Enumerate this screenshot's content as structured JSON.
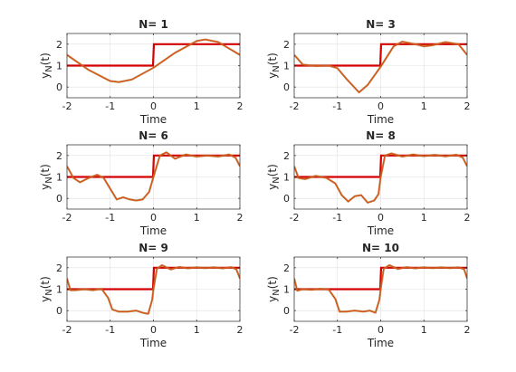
{
  "colors": {
    "square_wave": "#d40000",
    "partial_sum": "#d95319",
    "partial_sum_shade": "#8c8c3c",
    "axes": "#262626",
    "grid": "#dfdfdf"
  },
  "chart_data": [
    {
      "type": "line",
      "title": "N= 1",
      "xlabel": "Time",
      "ylabel": "y_N(t)",
      "xlim": [
        -2,
        2
      ],
      "ylim": [
        -0.5,
        2.5
      ],
      "xticks": [
        "-2",
        "-1",
        "0",
        "1",
        "2"
      ],
      "yticks": [
        "0",
        "1",
        "2"
      ],
      "grid": true,
      "series": [
        {
          "x": [
            -2,
            -1.5,
            -1,
            -0.8,
            -0.5,
            0,
            0.5,
            1,
            1.2,
            1.5,
            2
          ],
          "y": [
            1.5,
            0.8,
            0.28,
            0.23,
            0.35,
            0.9,
            1.6,
            2.15,
            2.22,
            2.1,
            1.5
          ]
        },
        {
          "x": [
            -2,
            -0.01,
            0,
            0.01,
            2
          ],
          "y": [
            1,
            1,
            1.5,
            2,
            2
          ]
        }
      ]
    },
    {
      "type": "line",
      "title": "N= 3",
      "xlabel": "Time",
      "ylabel": "y_N(t)",
      "xlim": [
        -2,
        2
      ],
      "ylim": [
        -0.5,
        2.5
      ],
      "xticks": [
        "-2",
        "-1",
        "0",
        "1",
        "2"
      ],
      "yticks": [
        "0",
        "1",
        "2"
      ],
      "grid": true,
      "series": [
        {
          "x": [
            -2,
            -1.8,
            -1.5,
            -1.2,
            -1,
            -0.8,
            -0.5,
            -0.3,
            0,
            0.3,
            0.5,
            0.8,
            1,
            1.2,
            1.5,
            1.8,
            2
          ],
          "y": [
            1.5,
            1.05,
            0.98,
            1.0,
            0.88,
            0.4,
            -0.25,
            0.1,
            0.95,
            1.9,
            2.12,
            2.0,
            1.9,
            1.95,
            2.1,
            2.0,
            1.5
          ]
        },
        {
          "x": [
            -2,
            -0.01,
            0,
            0.01,
            2
          ],
          "y": [
            1,
            1,
            1.5,
            2,
            2
          ]
        }
      ]
    },
    {
      "type": "line",
      "title": "N= 6",
      "xlabel": "Time",
      "ylabel": "y_N(t)",
      "xlim": [
        -2,
        2
      ],
      "ylim": [
        -0.5,
        2.5
      ],
      "xticks": [
        "-2",
        "-1",
        "0",
        "1",
        "2"
      ],
      "yticks": [
        "0",
        "1",
        "2"
      ],
      "grid": true,
      "series": [
        {
          "x": [
            -2,
            -1.85,
            -1.7,
            -1.5,
            -1.3,
            -1.15,
            -1,
            -0.85,
            -0.7,
            -0.55,
            -0.4,
            -0.25,
            -0.1,
            0,
            0.15,
            0.3,
            0.5,
            0.75,
            1,
            1.25,
            1.5,
            1.75,
            1.9,
            2
          ],
          "y": [
            1.5,
            0.95,
            0.75,
            0.95,
            1.1,
            0.95,
            0.45,
            -0.05,
            0.05,
            -0.05,
            -0.1,
            -0.05,
            0.3,
            1.0,
            2.0,
            2.15,
            1.85,
            2.05,
            1.95,
            2.0,
            1.95,
            2.05,
            1.9,
            1.5
          ]
        },
        {
          "x": [
            -2,
            -0.01,
            0,
            0.01,
            2
          ],
          "y": [
            1,
            1,
            1.5,
            2,
            2
          ]
        }
      ]
    },
    {
      "type": "line",
      "title": "N= 8",
      "xlabel": "Time",
      "ylabel": "y_N(t)",
      "xlim": [
        -2,
        2
      ],
      "ylim": [
        -0.5,
        2.5
      ],
      "xticks": [
        "-2",
        "-1",
        "0",
        "1",
        "2"
      ],
      "yticks": [
        "0",
        "1",
        "2"
      ],
      "grid": true,
      "series": [
        {
          "x": [
            -2,
            -1.9,
            -1.75,
            -1.5,
            -1.25,
            -1.05,
            -0.9,
            -0.75,
            -0.6,
            -0.45,
            -0.3,
            -0.15,
            -0.05,
            0,
            0.1,
            0.25,
            0.5,
            0.75,
            1,
            1.25,
            1.5,
            1.75,
            1.9,
            2
          ],
          "y": [
            1.5,
            0.95,
            0.9,
            1.05,
            0.95,
            0.7,
            0.15,
            -0.15,
            0.1,
            0.15,
            -0.2,
            -0.1,
            0.2,
            1.0,
            2.0,
            2.1,
            1.95,
            2.05,
            1.97,
            2.03,
            1.96,
            2.04,
            1.9,
            1.5
          ]
        },
        {
          "x": [
            -2,
            -0.01,
            0,
            0.01,
            2
          ],
          "y": [
            1,
            1,
            1.5,
            2,
            2
          ]
        }
      ]
    },
    {
      "type": "line",
      "title": "N= 9",
      "xlabel": "Time",
      "ylabel": "y_N(t)",
      "xlim": [
        -2,
        2
      ],
      "ylim": [
        -0.5,
        2.5
      ],
      "xticks": [
        "-2",
        "-1",
        "0",
        "1",
        "2"
      ],
      "yticks": [
        "0",
        "1",
        "2"
      ],
      "grid": true,
      "series": [
        {
          "x": [
            -2,
            -1.92,
            -1.8,
            -1.6,
            -1.4,
            -1.2,
            -1.05,
            -0.95,
            -0.8,
            -0.6,
            -0.4,
            -0.25,
            -0.12,
            -0.03,
            0,
            0.08,
            0.2,
            0.4,
            0.6,
            0.8,
            1,
            1.2,
            1.4,
            1.6,
            1.8,
            1.92,
            2
          ],
          "y": [
            1.5,
            0.95,
            0.95,
            1.0,
            0.95,
            1.02,
            0.6,
            0.05,
            -0.05,
            -0.05,
            0.0,
            -0.1,
            -0.15,
            0.5,
            1.0,
            1.95,
            2.12,
            1.92,
            2.04,
            1.97,
            2.02,
            1.98,
            2.02,
            1.97,
            2.03,
            1.92,
            1.5
          ]
        },
        {
          "x": [
            -2,
            -0.01,
            0,
            0.01,
            2
          ],
          "y": [
            1,
            1,
            1.5,
            2,
            2
          ]
        }
      ]
    },
    {
      "type": "line",
      "title": "N= 10",
      "xlabel": "Time",
      "ylabel": "y_N(t)",
      "xlim": [
        -2,
        2
      ],
      "ylim": [
        -0.5,
        2.5
      ],
      "xticks": [
        "-2",
        "-1",
        "0",
        "1",
        "2"
      ],
      "yticks": [
        "0",
        "1",
        "2"
      ],
      "grid": true,
      "series": [
        {
          "x": [
            -2,
            -1.93,
            -1.8,
            -1.6,
            -1.4,
            -1.2,
            -1.05,
            -0.95,
            -0.8,
            -0.6,
            -0.4,
            -0.25,
            -0.12,
            -0.03,
            0,
            0.07,
            0.2,
            0.4,
            0.6,
            0.8,
            1,
            1.2,
            1.4,
            1.6,
            1.8,
            1.93,
            2
          ],
          "y": [
            1.5,
            0.93,
            1.0,
            0.97,
            1.02,
            0.98,
            0.55,
            -0.05,
            -0.05,
            0.0,
            -0.05,
            0.0,
            -0.1,
            0.5,
            1.0,
            1.95,
            2.12,
            1.94,
            2.03,
            1.97,
            2.02,
            1.98,
            2.02,
            1.98,
            2.02,
            1.93,
            1.5
          ]
        },
        {
          "x": [
            -2,
            -0.01,
            0,
            0.01,
            2
          ],
          "y": [
            1,
            1,
            1.5,
            2,
            2
          ]
        }
      ]
    }
  ]
}
